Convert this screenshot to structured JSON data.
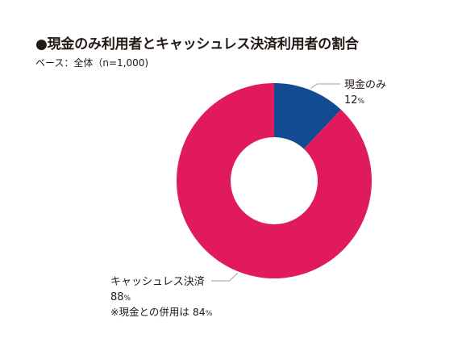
{
  "title": "●現金のみ利用者とキャッシュレス決済利用者の割合",
  "subtitle": "ベース：全体（n=1,000)",
  "colors": {
    "cash": "#124b91",
    "cashless": "#e01a5c",
    "leader": "#9d9d9d"
  },
  "chart_data": {
    "type": "pie",
    "title": "●現金のみ利用者とキャッシュレス決済利用者の割合",
    "categories": [
      "現金のみ",
      "キャッシュレス決済"
    ],
    "values": [
      12,
      88
    ],
    "unit": "%",
    "donut": true,
    "labels": [
      {
        "name": "現金のみ",
        "value": "12",
        "unit": "%"
      },
      {
        "name": "キャッシュレス決済",
        "value": "88",
        "unit": "%",
        "note_prefix": "※現金との併用は ",
        "note_value": "84",
        "note_unit": "%"
      }
    ]
  }
}
